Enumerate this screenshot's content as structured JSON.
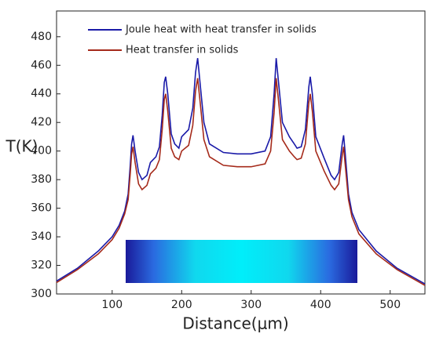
{
  "chart_data": {
    "type": "line",
    "xlabel": "Distance(μm)",
    "ylabel": "T(K)",
    "x": [
      20,
      50,
      80,
      100,
      110,
      118,
      123,
      126,
      128,
      130,
      133,
      138,
      143,
      150,
      155,
      163,
      168,
      172,
      175,
      177,
      180,
      185,
      190,
      196,
      200,
      210,
      216,
      220,
      223,
      226,
      232,
      240,
      260,
      280,
      300,
      320,
      328,
      333,
      336,
      339,
      345,
      355,
      362,
      366,
      372,
      378,
      383,
      385,
      388,
      393,
      405,
      415,
      420,
      426,
      431,
      433,
      435,
      440,
      445,
      455,
      480,
      510,
      550
    ],
    "series": [
      {
        "name": "Joule heat with heat transfer in solids",
        "color": "#1a1aa8",
        "values": [
          309,
          318,
          330,
          340,
          348,
          358,
          370,
          390,
          405,
          411,
          400,
          385,
          380,
          383,
          392,
          396,
          403,
          425,
          448,
          452,
          440,
          412,
          405,
          402,
          410,
          415,
          430,
          455,
          465,
          450,
          420,
          405,
          399,
          398,
          398,
          400,
          410,
          440,
          465,
          450,
          420,
          410,
          405,
          402,
          403,
          415,
          445,
          452,
          440,
          410,
          395,
          383,
          380,
          385,
          405,
          411,
          400,
          370,
          357,
          345,
          330,
          318,
          307
        ]
      },
      {
        "name": "Heat transfer in solids",
        "color": "#a52a1a",
        "values": [
          308,
          317,
          328,
          338,
          346,
          356,
          366,
          384,
          398,
          403,
          392,
          377,
          373,
          376,
          384,
          388,
          394,
          415,
          436,
          440,
          428,
          402,
          396,
          394,
          400,
          404,
          418,
          442,
          451,
          437,
          408,
          396,
          390,
          389,
          389,
          391,
          400,
          427,
          451,
          437,
          408,
          400,
          396,
          394,
          395,
          405,
          434,
          440,
          428,
          400,
          386,
          376,
          373,
          377,
          397,
          403,
          392,
          366,
          354,
          342,
          328,
          317,
          306
        ]
      }
    ],
    "xlim": [
      20,
      550
    ],
    "xticks": [
      100,
      200,
      300,
      400,
      500
    ],
    "ylim": [
      300,
      498
    ],
    "yticks": [
      300,
      320,
      340,
      360,
      380,
      400,
      420,
      440,
      460,
      480
    ]
  }
}
